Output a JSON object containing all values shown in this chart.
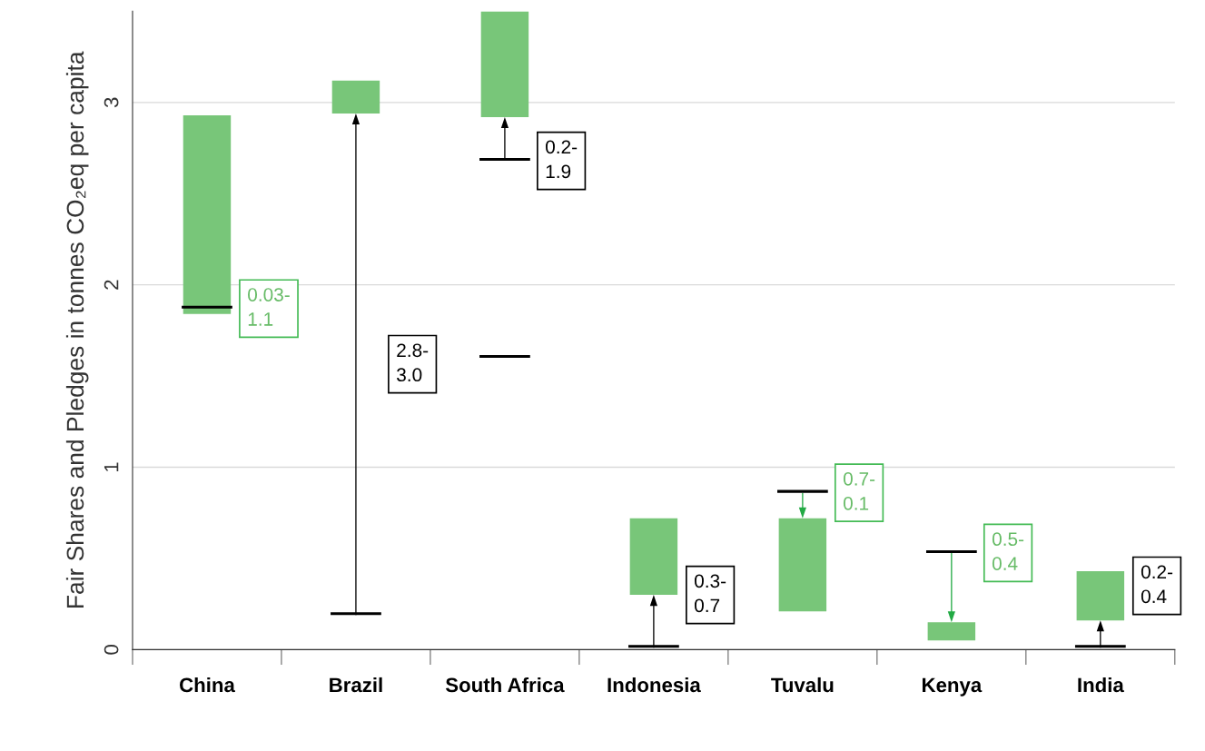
{
  "chart_data": {
    "type": "bar",
    "ylabel": "Fair Shares and Pledges in tonnes CO₂eq per capita",
    "categories": [
      "China",
      "Brazil",
      "South Africa",
      "Indonesia",
      "Tuvalu",
      "Kenya",
      "India"
    ],
    "series": [
      {
        "color": "#78c679",
        "base": [
          1.84,
          2.94,
          2.92,
          0.3,
          0.21,
          0.05,
          0.16
        ],
        "values": [
          1.09,
          0.18,
          0.58,
          0.42,
          0.51,
          0.1,
          0.27
        ]
      },
      {
        "color": "#000000",
        "base": [
          1.87,
          0.19,
          2.68,
          0.01,
          0.86,
          0.53,
          0.01
        ],
        "values": [
          0.015,
          0.015,
          0.015,
          0.015,
          0.015,
          0.015,
          0.015
        ]
      },
      {
        "color": "#000000",
        "base": [
          null,
          null,
          1.6,
          null,
          null,
          null,
          null
        ],
        "values": [
          null,
          null,
          0.015,
          null,
          null,
          null,
          null
        ]
      }
    ],
    "annotations": [
      {
        "text": "0.03-\n1.1",
        "x": "China",
        "y": 1.87
      },
      "2.8-\n3.0",
      {
        "text": "0.2-\n1.9",
        "x": "South Africa",
        "y": 2.68
      },
      {
        "text": "0.3-\n0.7",
        "x": "Indonesia",
        "y": 0.3
      },
      {
        "text": "0.7-\n0.1",
        "x": "Tuvalu",
        "y": 0.86
      },
      {
        "text": "0.5-\n0.4",
        "x": "Kenya",
        "y": 0.53
      },
      "0.2-\n0.4"
    ],
    "ylim": [
      0,
      3.5
    ],
    "yticks": [
      0,
      1,
      2,
      3
    ],
    "grid": "y"
  }
}
